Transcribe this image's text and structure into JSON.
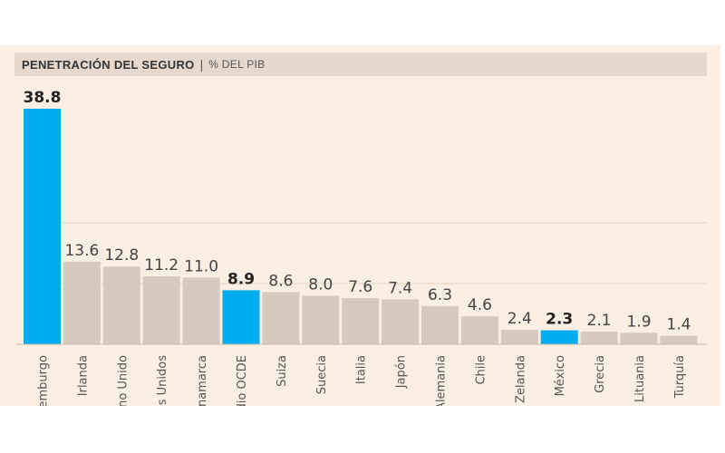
{
  "title": "PENETRACIÓN DEL SEGURO",
  "subtitle": "% DEL PIB",
  "colors": {
    "bar": "#d6c9bd",
    "highlight": "#00aeef",
    "background": "#fbeee2",
    "title_bar": "#e6d8cc",
    "gridline": "#e3d2c3"
  },
  "chart_data": {
    "type": "bar",
    "categories": [
      "Luxemburgo",
      "Irlanda",
      "Reino Unido",
      "Estados Unidos",
      "Dinamarca",
      "Promedio OCDE",
      "Suiza",
      "Suecia",
      "Italia",
      "Japón",
      "Alemania",
      "Chile",
      "Nueva Zelanda",
      "México",
      "Grecia",
      "Lituania",
      "Turquía"
    ],
    "values": [
      38.8,
      13.6,
      12.8,
      11.2,
      11.0,
      8.9,
      8.6,
      8.0,
      7.6,
      7.4,
      6.3,
      4.6,
      2.4,
      2.3,
      2.1,
      1.9,
      1.4
    ],
    "value_labels": [
      "38.8",
      "13.6",
      "12.8",
      "11.2",
      "11.0",
      "8.9",
      "8.6",
      "8.0",
      "7.6",
      "7.4",
      "6.3",
      "4.6",
      "2.4",
      "2.3",
      "2.1",
      "1.9",
      "1.4"
    ],
    "highlighted": [
      "Luxemburgo",
      "Promedio OCDE",
      "México"
    ],
    "title": "PENETRACIÓN DEL SEGURO",
    "subtitle": "% DEL PIB",
    "xlabel": "",
    "ylabel": "",
    "ylim": [
      0,
      40
    ],
    "grid": true,
    "legend": "none"
  }
}
